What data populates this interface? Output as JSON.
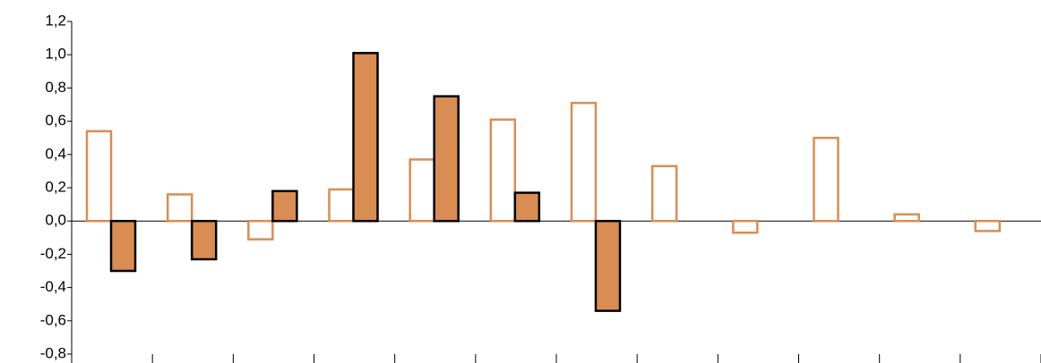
{
  "chart_data": {
    "type": "bar",
    "categories": [
      null,
      null,
      null,
      null,
      null,
      null,
      null,
      null,
      null,
      null,
      null,
      null
    ],
    "series": [
      {
        "color": "#d98d52",
        "fill": "#ffffff",
        "values": [
          0.54,
          0.16,
          -0.11,
          0.19,
          0.37,
          0.61,
          0.71,
          0.33,
          -0.07,
          0.5,
          0.04,
          -0.06
        ]
      },
      {
        "color": "#d98d52",
        "fill": "#d98d52",
        "values": [
          -0.3,
          -0.23,
          0.18,
          1.01,
          0.75,
          0.17,
          -0.54,
          null,
          null,
          null,
          null,
          null
        ]
      }
    ],
    "ylim": [
      -0.8,
      1.2
    ],
    "yticks": [
      {
        "value": -0.8,
        "label": "-0,8"
      },
      {
        "value": -0.6,
        "label": "-0,6"
      },
      {
        "value": -0.4,
        "label": "-0,4"
      },
      {
        "value": -0.2,
        "label": "-0,2"
      },
      {
        "value": 0,
        "label": "0,0"
      },
      {
        "value": 0.2,
        "label": "0,2"
      },
      {
        "value": 0.4,
        "label": "0,4"
      },
      {
        "value": 0.6,
        "label": "0,6"
      },
      {
        "value": 0.8,
        "label": "0,8"
      },
      {
        "value": 1.0,
        "label": "1,0"
      },
      {
        "value": 1.2,
        "label": "1,2"
      }
    ],
    "grid": false
  }
}
